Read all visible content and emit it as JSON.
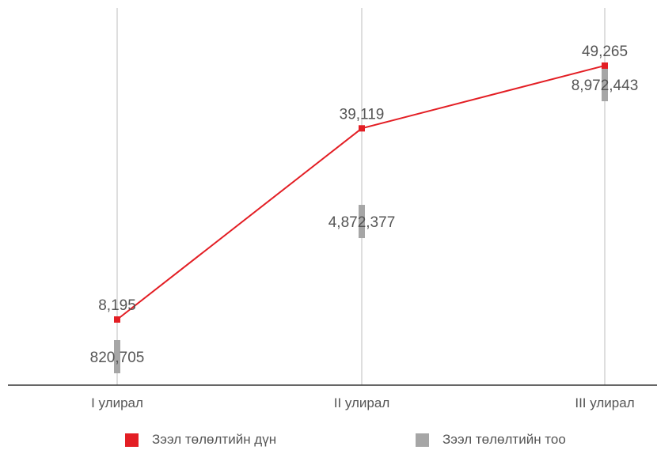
{
  "chart_data": {
    "type": "line",
    "categories": [
      "I улирал",
      "II улирал",
      "III улирал"
    ],
    "series": [
      {
        "name": "Зээл төлөлтийн дүн",
        "values": [
          8195,
          39119,
          49265
        ],
        "labels": [
          "8,195",
          "39,119",
          "49,265"
        ],
        "color": "#e31e24",
        "style": "line-with-square-markers"
      },
      {
        "name": "Зээл төлөлтийн тоо",
        "values": [
          820705,
          4872377,
          8972443
        ],
        "labels": [
          "820,705",
          "4,872,377",
          "8,972,443"
        ],
        "color": "#a6a6a6",
        "style": "bar-marker"
      }
    ],
    "title": "",
    "xlabel": "",
    "ylabel": "",
    "grid": "vertical-lines",
    "legend_position": "bottom"
  }
}
